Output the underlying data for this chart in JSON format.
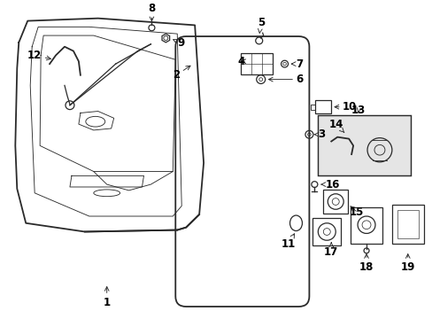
{
  "bg_color": "#ffffff",
  "line_color": "#2a2a2a",
  "label_font_size": 8.5,
  "fig_w": 4.89,
  "fig_h": 3.6,
  "dpi": 100
}
